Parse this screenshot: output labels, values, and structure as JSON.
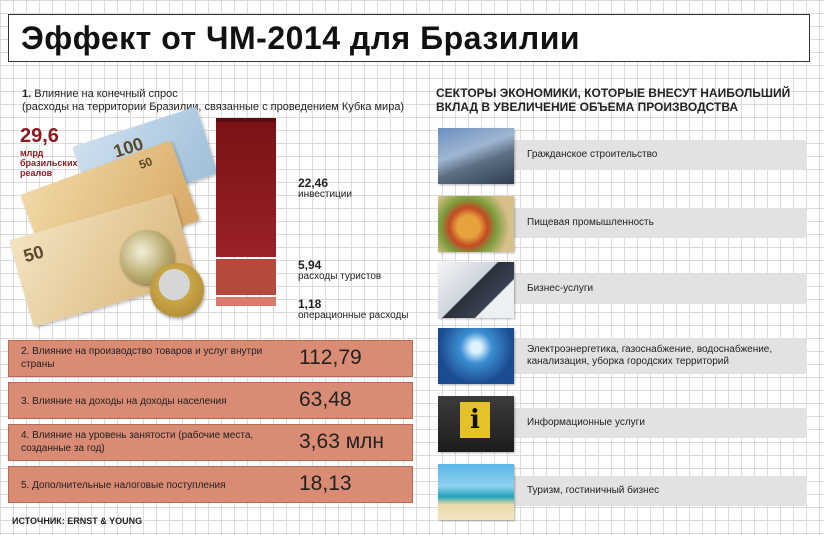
{
  "title": "Эффект от ЧМ-2014 для Бразилии",
  "item1": {
    "number": "1.",
    "heading": "Влияние на конечный спрос",
    "subheading": "(расходы на территории Бразилии, связанные с проведением Кубка мира)",
    "total_value": "29,6",
    "total_unit": "млрд бразильских реалов",
    "bars": [
      {
        "value": "22,46",
        "label": "инвестиции"
      },
      {
        "value": "5,94",
        "label": "расходы туристов"
      },
      {
        "value": "1,18",
        "label": "операционные расходы"
      }
    ]
  },
  "metrics": [
    {
      "label": "2. Влияние на производство товаров и услуг внутри страны",
      "value": "112,79"
    },
    {
      "label": "3. Влияние на доходы на доходы населения",
      "value": "63,48"
    },
    {
      "label": "4. Влияние на уровень занятости (рабочие места, созданные за год)",
      "value": "3,63 млн"
    },
    {
      "label": "5. Дополнительные налоговые поступления",
      "value": "18,13"
    }
  ],
  "source": "ИСТОЧНИК: ERNST & YOUNG",
  "sectors": {
    "title": "СЕКТОРЫ ЭКОНОМИКИ, КОТОРЫЕ ВНЕСУТ НАИБОЛЬШИЙ ВКЛАД В УВЕЛИЧЕНИЕ ОБЪЕМА ПРОИЗВОДСТВА",
    "items": [
      {
        "label": "Гражданское строительство",
        "icon": "buildings-photo"
      },
      {
        "label": "Пищевая промышленность",
        "icon": "food-photo"
      },
      {
        "label": "Бизнес-услуги",
        "icon": "businessman-photo"
      },
      {
        "label": "Электроэнергетика, газоснабжение, водоснабжение, канализация, уборка городских территорий",
        "icon": "lightbulb-photo"
      },
      {
        "label": "Информационные услуги",
        "icon": "info-sign-photo"
      },
      {
        "label": "Туризм, гостиничный бизнес",
        "icon": "beach-photo"
      }
    ]
  },
  "colors": {
    "bar_dark": "#8a1a1f",
    "bar_mid": "#b5493c",
    "bar_light": "#d87b6a",
    "row_fill": "#d98b74",
    "sector_bar": "#e2e2e2"
  }
}
